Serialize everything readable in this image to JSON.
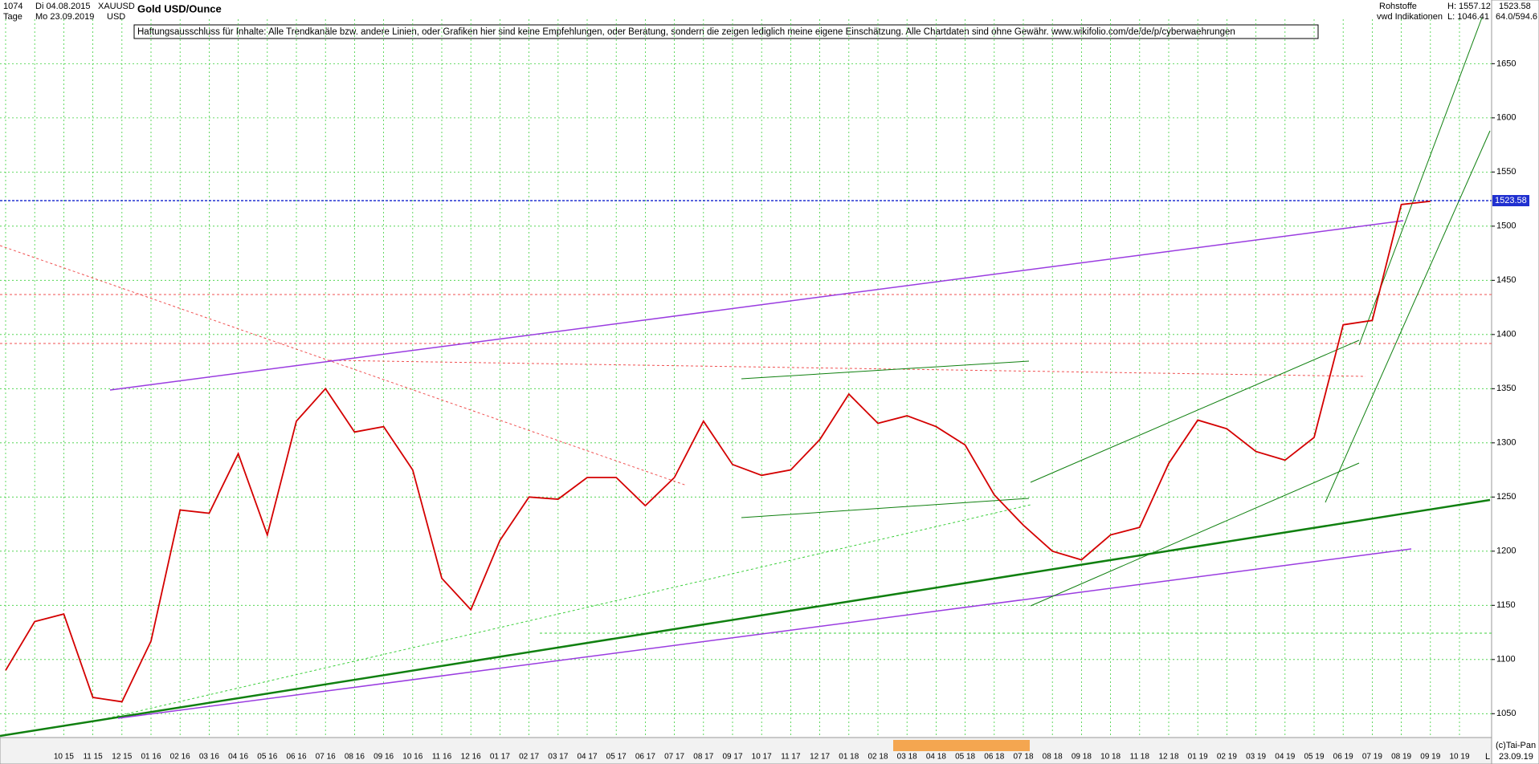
{
  "header": {
    "id": "1074",
    "date_from": "Di 04.08.2015",
    "period": "Tage",
    "date_to": "Mo 23.09.2019",
    "symbol": "XAUUSD",
    "currency": "USD",
    "category": "Rohstoffe",
    "source": "vwd Indikationen",
    "high": "H: 1557.12",
    "low": "L: 1046.41",
    "axis_info": "64.0/594.6",
    "disclaimer": "Haftungsausschluss für Inhalte: Alle Trendkanäle bzw. andere Linien, oder Grafiken hier sind keine Empfehlungen, oder Beratung, sondern die zeigen lediglich meine eigene Einschätzung. Alle Chartdaten sind ohne Gewähr.  www.wikifolio.com/de/de/p/cyberwaehrungen",
    "copyright": "(c)Tai-Pan",
    "scale_mode": "L",
    "date_end": "23.09.19"
  },
  "chart_data": {
    "type": "line",
    "title": "Gold USD/Ounce",
    "color": "#d40000",
    "categories": [
      null,
      null,
      "10 15",
      "11 15",
      "12 15",
      "01 16",
      "02 16",
      "03 16",
      "04 16",
      "05 16",
      "06 16",
      "07 16",
      "08 16",
      "09 16",
      "10 16",
      "11 16",
      "12 16",
      "01 17",
      "02 17",
      "03 17",
      "04 17",
      "05 17",
      "06 17",
      "07 17",
      "08 17",
      "09 17",
      "10 17",
      "11 17",
      "12 17",
      "01 18",
      "02 18",
      "03 18",
      "04 18",
      "05 18",
      "06 18",
      "07 18",
      "08 18",
      "09 18",
      "10 18",
      "11 18",
      "12 18",
      "01 19",
      "02 19",
      "03 19",
      "04 19",
      "05 19",
      "06 19",
      "07 19",
      "08 19",
      "09 19",
      "10 19"
    ],
    "values": [
      1090,
      1135,
      1142,
      1065,
      1061,
      1117,
      1238,
      1235,
      1290,
      1215,
      1320,
      1350,
      1310,
      1315,
      1275,
      1175,
      1146,
      1210,
      1250,
      1248,
      1268,
      1268,
      1242,
      1268,
      1320,
      1280,
      1270,
      1275,
      1303,
      1345,
      1318,
      1325,
      1315,
      1298,
      1252,
      1224,
      1200,
      1192,
      1215,
      1222,
      1281,
      1321,
      1313,
      1292,
      1284,
      1305,
      1409,
      1413,
      1520,
      1523,
      null
    ],
    "last_price": 1523.58,
    "ylim": [
      1028,
      1691
    ],
    "yticks": [
      1050,
      1100,
      1150,
      1200,
      1250,
      1300,
      1350,
      1400,
      1450,
      1500,
      1550,
      1600,
      1650
    ],
    "grid": true
  }
}
